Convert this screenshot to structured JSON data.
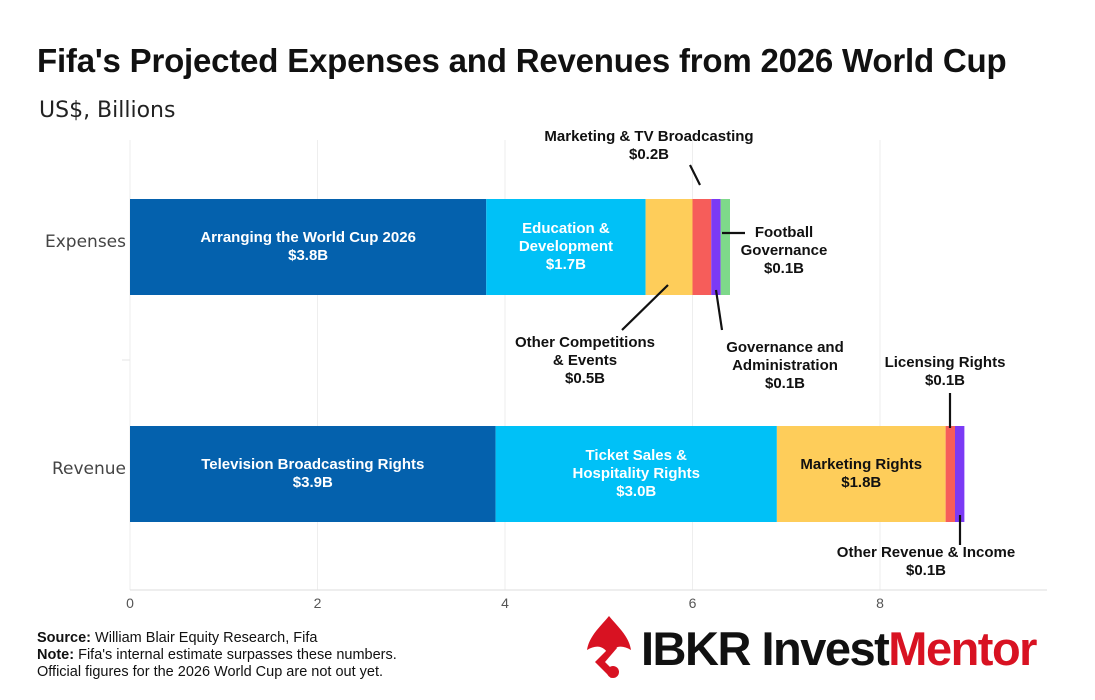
{
  "title": "Fifa's Projected Expenses and Revenues from 2026 World Cup",
  "subtitle": "US$, Billions",
  "footer": {
    "source_label": "Source:",
    "source_text": "William Blair Equity Research, Fifa",
    "note_label": "Note:",
    "note_text_1": "Fifa's internal estimate surpasses these numbers.",
    "note_text_2": "Official figures for the 2026 World Cup are not out yet."
  },
  "logo": {
    "brand": "IBKR ",
    "product_black": "Invest",
    "product_red": "Mentor",
    "icon": "ibkr-logo-icon",
    "brand_color": "#d81222"
  },
  "chart_data": {
    "type": "bar",
    "orientation": "horizontal",
    "stacked": true,
    "categories": [
      "Expenses",
      "Revenue"
    ],
    "xlim": [
      0,
      9.8
    ],
    "xticks": [
      0,
      2,
      4,
      6,
      8
    ],
    "grid": true,
    "series": [
      {
        "category": "Expenses",
        "segments": [
          {
            "name": "Arranging the World Cup 2026",
            "value": 3.8,
            "label": "$3.8B",
            "color": "#0461ad"
          },
          {
            "name": "Education & Development",
            "value": 1.7,
            "label": "$1.7B",
            "color": "#00c1f7"
          },
          {
            "name": "Other Competitions & Events",
            "value": 0.5,
            "label": "$0.5B",
            "color": "#fecd5a"
          },
          {
            "name": "Marketing & TV Broadcasting",
            "value": 0.2,
            "label": "$0.2B",
            "color": "#f65d5a"
          },
          {
            "name": "Governance and Administration",
            "value": 0.1,
            "label": "$0.1B",
            "color": "#7b3af5"
          },
          {
            "name": "Football Governance",
            "value": 0.1,
            "label": "$0.1B",
            "color": "#7ed98a"
          }
        ]
      },
      {
        "category": "Revenue",
        "segments": [
          {
            "name": "Television Broadcasting Rights",
            "value": 3.9,
            "label": "$3.9B",
            "color": "#0461ad"
          },
          {
            "name": "Ticket Sales & Hospitality Rights",
            "value": 3.0,
            "label": "$3.0B",
            "color": "#00c1f7"
          },
          {
            "name": "Marketing Rights",
            "value": 1.8,
            "label": "$1.8B",
            "color": "#fecd5a"
          },
          {
            "name": "Licensing Rights",
            "value": 0.1,
            "label": "$0.1B",
            "color": "#f65d5a"
          },
          {
            "name": "Other Revenue & Income",
            "value": 0.1,
            "label": "$0.1B",
            "color": "#7b3af5"
          }
        ]
      }
    ],
    "inside_labels": [
      {
        "category": "Expenses",
        "segment": 0,
        "lines": [
          "Arranging the World Cup 2026",
          "$3.8B"
        ],
        "color": "#ffffff"
      },
      {
        "category": "Expenses",
        "segment": 1,
        "lines": [
          "Education &",
          "Development",
          "$1.7B"
        ],
        "color": "#ffffff"
      },
      {
        "category": "Revenue",
        "segment": 0,
        "lines": [
          "Television Broadcasting Rights",
          "$3.9B"
        ],
        "color": "#ffffff"
      },
      {
        "category": "Revenue",
        "segment": 1,
        "lines": [
          "Ticket Sales &",
          "Hospitality Rights",
          "$3.0B"
        ],
        "color": "#ffffff"
      },
      {
        "category": "Revenue",
        "segment": 2,
        "lines": [
          "Marketing Rights",
          "$1.8B"
        ],
        "color": "#111111"
      }
    ],
    "callouts": [
      {
        "category": "Expenses",
        "segment": 3,
        "lines": [
          "Marketing & TV Broadcasting",
          "$0.2B"
        ]
      },
      {
        "category": "Expenses",
        "segment": 5,
        "lines": [
          "Football",
          "Governance",
          "$0.1B"
        ]
      },
      {
        "category": "Expenses",
        "segment": 2,
        "lines": [
          "Other Competitions",
          "& Events",
          "$0.5B"
        ]
      },
      {
        "category": "Expenses",
        "segment": 4,
        "lines": [
          "Governance and",
          "Administration",
          "$0.1B"
        ]
      },
      {
        "category": "Revenue",
        "segment": 3,
        "lines": [
          "Licensing Rights",
          "$0.1B"
        ]
      },
      {
        "category": "Revenue",
        "segment": 4,
        "lines": [
          "Other Revenue & Income",
          "$0.1B"
        ]
      }
    ]
  }
}
